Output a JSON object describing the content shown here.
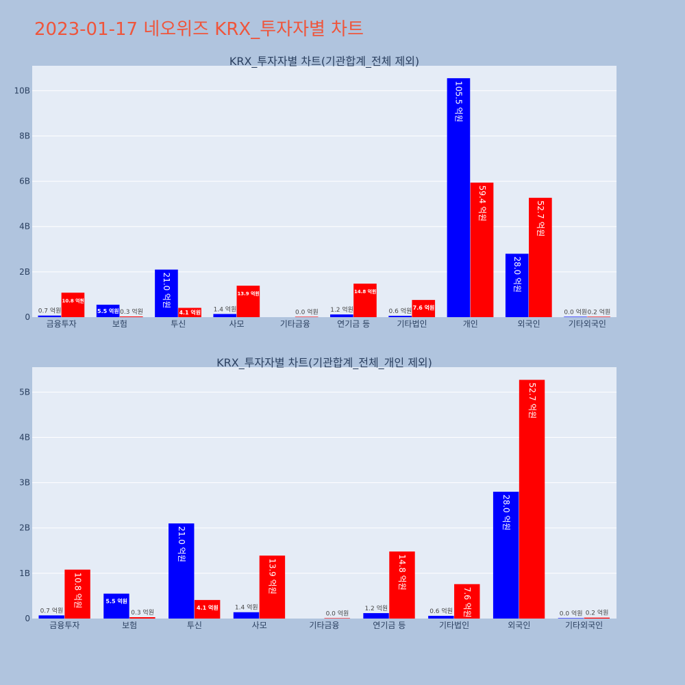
{
  "page_title": "2023-01-17 네오위즈 KRX_투자자별 차트",
  "colors": {
    "buy": "#0000ff",
    "sell": "#ff0000",
    "plot_bg": "#e5ecf6",
    "page_bg": "#b0c4de",
    "title": "#ef553b"
  },
  "chart_data": [
    {
      "type": "bar",
      "title": "KRX_투자자별 차트(기관합계_전체 제외)",
      "categories": [
        "금융투자",
        "보험",
        "투신",
        "사모",
        "기타금융",
        "연기금 등",
        "기타법인",
        "개인",
        "외국인",
        "기타외국인"
      ],
      "series": [
        {
          "color": "#0000ff",
          "values": [
            70000000,
            550000000,
            2100000000,
            140000000,
            null,
            120000000,
            60000000,
            10550000000,
            2800000000,
            0
          ],
          "labels": [
            "0.7 억원",
            "5.5 억원",
            "21.0 억원",
            "1.4 억원",
            "",
            "1.2 억원",
            "0.6 억원",
            "105.5 억원",
            "28.0 억원",
            "0.0 억원"
          ]
        },
        {
          "color": "#ff0000",
          "values": [
            1080000000,
            30000000,
            410000000,
            1390000000,
            0,
            1480000000,
            760000000,
            5940000000,
            5270000000,
            20000000
          ],
          "labels": [
            "10.8 억원",
            "0.3 억원",
            "4.1 억원",
            "13.9 억원",
            "0.0 억원",
            "14.8 억원",
            "7.6 억원",
            "59.4 억원",
            "52.7 억원",
            "0.2 억원"
          ]
        }
      ],
      "yticks": [
        0,
        2000000000,
        4000000000,
        6000000000,
        8000000000,
        10000000000
      ],
      "ytick_labels": [
        "0",
        "2B",
        "4B",
        "6B",
        "8B",
        "10B"
      ],
      "ylim": [
        0,
        11100000000
      ],
      "grid": true
    },
    {
      "type": "bar",
      "title": "KRX_투자자별 차트(기관합계_전체_개인 제외)",
      "categories": [
        "금융투자",
        "보험",
        "투신",
        "사모",
        "기타금융",
        "연기금 등",
        "기타법인",
        "외국인",
        "기타외국인"
      ],
      "series": [
        {
          "color": "#0000ff",
          "values": [
            70000000,
            550000000,
            2100000000,
            140000000,
            null,
            120000000,
            60000000,
            2800000000,
            0
          ],
          "labels": [
            "0.7 억원",
            "5.5 억원",
            "21.0 억원",
            "1.4 억원",
            "",
            "1.2 억원",
            "0.6 억원",
            "28.0 억원",
            "0.0 억원"
          ]
        },
        {
          "color": "#ff0000",
          "values": [
            1080000000,
            30000000,
            410000000,
            1390000000,
            0,
            1480000000,
            760000000,
            5270000000,
            20000000
          ],
          "labels": [
            "10.8 억원",
            "0.3 억원",
            "4.1 억원",
            "13.9 억원",
            "0.0 억원",
            "14.8 억원",
            "7.6 억원",
            "52.7 억원",
            "0.2 억원"
          ]
        }
      ],
      "yticks": [
        0,
        1000000000,
        2000000000,
        3000000000,
        4000000000,
        5000000000
      ],
      "ytick_labels": [
        "0",
        "1B",
        "2B",
        "3B",
        "4B",
        "5B"
      ],
      "ylim": [
        0,
        5550000000
      ],
      "grid": true
    }
  ]
}
